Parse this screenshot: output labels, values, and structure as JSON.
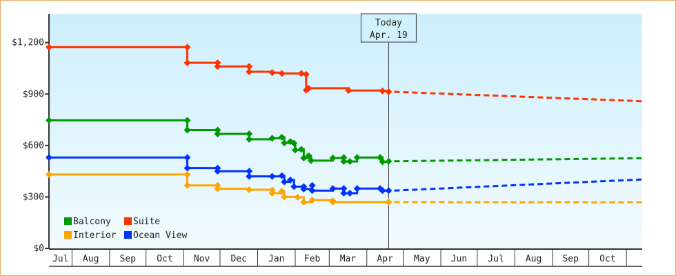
{
  "chart_data": {
    "type": "line",
    "title": "",
    "xlabel": "",
    "ylabel": "",
    "xlim": [
      "2013-07-13",
      "2014-11-14"
    ],
    "ylim": [
      0,
      1400
    ],
    "y_ticks": [
      {
        "value": 0,
        "label": "$0"
      },
      {
        "value": 300,
        "label": "$300"
      },
      {
        "value": 600,
        "label": "$600"
      },
      {
        "value": 900,
        "label": "$900"
      },
      {
        "value": 1200,
        "label": "$1,200"
      }
    ],
    "x_months": [
      {
        "start": "2013-07-13",
        "label": "Jul"
      },
      {
        "start": "2013-08-01",
        "label": "Aug"
      },
      {
        "start": "2013-09-01",
        "label": "Sep"
      },
      {
        "start": "2013-10-01",
        "label": "Oct"
      },
      {
        "start": "2013-11-01",
        "label": "Nov"
      },
      {
        "start": "2013-12-01",
        "label": "Dec"
      },
      {
        "start": "2014-01-01",
        "label": "Jan"
      },
      {
        "start": "2014-02-01",
        "label": "Feb"
      },
      {
        "start": "2014-03-01",
        "label": "Mar"
      },
      {
        "start": "2014-04-01",
        "label": "Apr"
      },
      {
        "start": "2014-05-01",
        "label": "May"
      },
      {
        "start": "2014-06-01",
        "label": "Jun"
      },
      {
        "start": "2014-07-01",
        "label": "Jul"
      },
      {
        "start": "2014-08-01",
        "label": "Aug"
      },
      {
        "start": "2014-09-01",
        "label": "Sep"
      },
      {
        "start": "2014-10-01",
        "label": "Oct"
      },
      {
        "start": "2014-11-01",
        "label": ""
      }
    ],
    "today": {
      "date": "2014-04-19",
      "label": "Today",
      "date_label": "Apr. 19"
    },
    "grid": false,
    "background": [
      "#cdeffc",
      "#f2fbff"
    ],
    "legend_position": "bottom-left",
    "series": [
      {
        "name": "Suite",
        "color": "#ff3300",
        "points": [
          [
            "2013-07-13",
            1173
          ],
          [
            "2013-11-04",
            1173
          ],
          [
            "2013-11-04",
            1082
          ],
          [
            "2013-11-29",
            1082
          ],
          [
            "2013-11-29",
            1061
          ],
          [
            "2013-12-25",
            1061
          ],
          [
            "2013-12-25",
            1030
          ],
          [
            "2014-01-13",
            1025
          ],
          [
            "2014-01-21",
            1020
          ],
          [
            "2014-02-06",
            1020
          ],
          [
            "2014-02-10",
            1015
          ],
          [
            "2014-02-10",
            923
          ],
          [
            "2014-02-12",
            934
          ],
          [
            "2014-03-17",
            921
          ],
          [
            "2014-04-14",
            918
          ],
          [
            "2014-04-19",
            913
          ]
        ],
        "forecast": [
          [
            "2014-04-19",
            913
          ],
          [
            "2014-11-14",
            858
          ]
        ]
      },
      {
        "name": "Balcony",
        "color": "#009900",
        "points": [
          [
            "2013-07-13",
            747
          ],
          [
            "2013-11-04",
            747
          ],
          [
            "2013-11-04",
            690
          ],
          [
            "2013-11-29",
            690
          ],
          [
            "2013-11-29",
            668
          ],
          [
            "2013-12-25",
            668
          ],
          [
            "2013-12-25",
            636
          ],
          [
            "2014-01-13",
            642
          ],
          [
            "2014-01-21",
            648
          ],
          [
            "2014-01-23",
            615
          ],
          [
            "2014-01-28",
            623
          ],
          [
            "2014-01-31",
            613
          ],
          [
            "2014-02-01",
            574
          ],
          [
            "2014-02-06",
            578
          ],
          [
            "2014-02-08",
            527
          ],
          [
            "2014-02-12",
            540
          ],
          [
            "2014-02-14",
            512
          ],
          [
            "2014-03-04",
            527
          ],
          [
            "2014-03-13",
            530
          ],
          [
            "2014-03-13",
            507
          ],
          [
            "2014-03-18",
            507
          ],
          [
            "2014-03-24",
            530
          ],
          [
            "2014-04-12",
            530
          ],
          [
            "2014-04-14",
            505
          ],
          [
            "2014-04-19",
            508
          ]
        ],
        "forecast": [
          [
            "2014-04-19",
            508
          ],
          [
            "2014-11-14",
            526
          ]
        ]
      },
      {
        "name": "Interior",
        "color": "#ffa500",
        "points": [
          [
            "2013-07-13",
            431
          ],
          [
            "2013-11-04",
            431
          ],
          [
            "2013-11-04",
            367
          ],
          [
            "2013-11-29",
            367
          ],
          [
            "2013-11-29",
            348
          ],
          [
            "2013-12-25",
            342
          ],
          [
            "2014-01-13",
            340
          ],
          [
            "2014-01-13",
            322
          ],
          [
            "2014-01-21",
            333
          ],
          [
            "2014-01-23",
            300
          ],
          [
            "2014-02-03",
            298
          ],
          [
            "2014-02-08",
            270
          ],
          [
            "2014-02-15",
            282
          ],
          [
            "2014-03-04",
            278
          ],
          [
            "2014-03-04",
            270
          ],
          [
            "2014-04-19",
            270
          ]
        ],
        "forecast": [
          [
            "2014-04-19",
            270
          ],
          [
            "2014-11-14",
            269
          ]
        ]
      },
      {
        "name": "Ocean View",
        "color": "#0033ff",
        "points": [
          [
            "2013-07-13",
            530
          ],
          [
            "2013-11-04",
            530
          ],
          [
            "2013-11-04",
            468
          ],
          [
            "2013-11-29",
            468
          ],
          [
            "2013-11-29",
            450
          ],
          [
            "2013-12-25",
            450
          ],
          [
            "2013-12-25",
            420
          ],
          [
            "2014-01-13",
            420
          ],
          [
            "2014-01-21",
            424
          ],
          [
            "2014-01-23",
            388
          ],
          [
            "2014-01-28",
            399
          ],
          [
            "2014-01-31",
            360
          ],
          [
            "2014-02-08",
            360
          ],
          [
            "2014-02-08",
            346
          ],
          [
            "2014-02-15",
            367
          ],
          [
            "2014-02-15",
            337
          ],
          [
            "2014-03-04",
            349
          ],
          [
            "2014-03-13",
            349
          ],
          [
            "2014-03-13",
            322
          ],
          [
            "2014-03-18",
            322
          ],
          [
            "2014-03-24",
            349
          ],
          [
            "2014-04-12",
            349
          ],
          [
            "2014-04-14",
            337
          ],
          [
            "2014-04-19",
            337
          ]
        ],
        "forecast": [
          [
            "2014-04-19",
            337
          ],
          [
            "2014-11-14",
            402
          ]
        ]
      }
    ],
    "legend": [
      {
        "name": "Balcony",
        "color": "#009900"
      },
      {
        "name": "Suite",
        "color": "#ff3300"
      },
      {
        "name": "Interior",
        "color": "#ffa500"
      },
      {
        "name": "Ocean View",
        "color": "#0033ff"
      }
    ]
  }
}
